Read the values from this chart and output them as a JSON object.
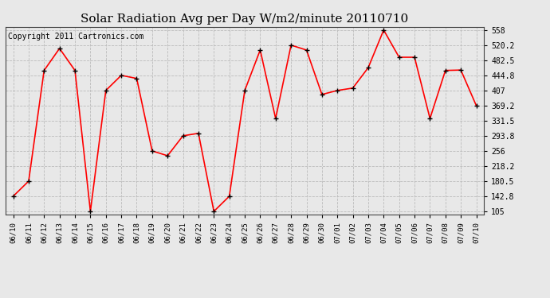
{
  "title": "Solar Radiation Avg per Day W/m2/minute 20110710",
  "copyright": "Copyright 2011 Cartronics.com",
  "dates": [
    "06/10",
    "06/11",
    "06/12",
    "06/13",
    "06/14",
    "06/15",
    "06/16",
    "06/17",
    "06/18",
    "06/19",
    "06/20",
    "06/21",
    "06/22",
    "06/23",
    "06/24",
    "06/25",
    "06/26",
    "06/27",
    "06/28",
    "06/29",
    "06/30",
    "07/01",
    "07/02",
    "07/03",
    "07/04",
    "07/05",
    "07/06",
    "07/07",
    "07/08",
    "07/09",
    "07/10"
  ],
  "values": [
    142.8,
    180.5,
    457.0,
    512.0,
    457.0,
    105.0,
    407.0,
    444.8,
    437.0,
    256.0,
    244.0,
    293.8,
    300.0,
    105.0,
    142.8,
    407.0,
    508.0,
    337.0,
    520.2,
    508.0,
    397.0,
    407.0,
    413.0,
    464.0,
    558.0,
    490.0,
    490.0,
    337.0,
    457.0,
    458.0,
    369.2
  ],
  "line_color": "#ff0000",
  "marker_color": "#000000",
  "background_color": "#e8e8e8",
  "plot_bg_color": "#e8e8e8",
  "grid_color": "#bbbbbb",
  "title_fontsize": 11,
  "copyright_fontsize": 7,
  "ytick_labels": [
    105.0,
    142.8,
    180.5,
    218.2,
    256.0,
    293.8,
    331.5,
    369.2,
    407.0,
    444.8,
    482.5,
    520.2,
    558.0
  ],
  "ylim": [
    97.0,
    566.0
  ],
  "tick_fontsize": 7,
  "xlabel_fontsize": 6.5
}
